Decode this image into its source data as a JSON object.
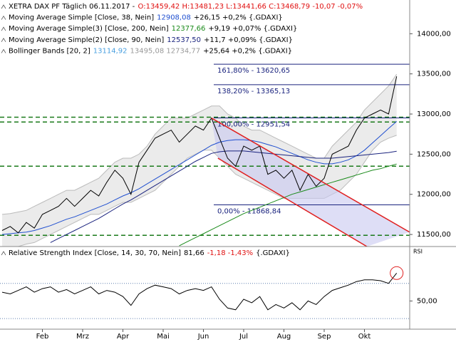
{
  "chart_data": [
    {
      "type": "line",
      "legend": [
        {
          "parts": [
            {
              "text": "XETRA DAX PF Täglich  06.11.2017 -",
              "color": "#000000"
            },
            {
              "text": "O:13459,42 H:13481,23 L:13441,66 C:13468,79 -10,07 -0,07%",
              "color": "#e01010"
            }
          ]
        },
        {
          "parts": [
            {
              "text": "Moving Average Simple [Close, 38, Nein]",
              "color": "#000000"
            },
            {
              "text": "12908,08",
              "color": "#1f4fd0"
            },
            {
              "text": "+26,15 +0,2% {.GDAXI}",
              "color": "#000000"
            }
          ]
        },
        {
          "parts": [
            {
              "text": "Moving Average Simple(3) [Close, 200, Nein]",
              "color": "#000000"
            },
            {
              "text": "12377,66",
              "color": "#1a8a1a"
            },
            {
              "text": "+9,19 +0,07% {.GDAXI}",
              "color": "#000000"
            }
          ]
        },
        {
          "parts": [
            {
              "text": "Moving Average Simple(2) [Close, 90, Nein]",
              "color": "#000000"
            },
            {
              "text": "12537,50",
              "color": "#1a237e"
            },
            {
              "text": "+11,7 +0,09% {.GDAXI}",
              "color": "#000000"
            }
          ]
        },
        {
          "parts": [
            {
              "text": "Bollinger Bands [20, 2]",
              "color": "#000000"
            },
            {
              "text": "13114,92",
              "color": "#4aa0e0"
            },
            {
              "text": "13495,08 12734,77",
              "color": "#999999"
            },
            {
              "text": "+25,64 +0,2% {.GDAXI}",
              "color": "#000000"
            }
          ]
        }
      ],
      "ylim": [
        11350,
        14420
      ],
      "yticks": [
        {
          "value": 11500,
          "label": "11500,00"
        },
        {
          "value": 12000,
          "label": "12000,00"
        },
        {
          "value": 12500,
          "label": "12500,00"
        },
        {
          "value": 13000,
          "label": "13000,00"
        },
        {
          "value": 13500,
          "label": "13500,00"
        },
        {
          "value": 14000,
          "label": "14000,00"
        }
      ],
      "bands": {
        "color": "#bbbbbb",
        "upper": [
          11750,
          11760,
          11780,
          11800,
          11850,
          11900,
          11950,
          12000,
          12050,
          12050,
          12100,
          12150,
          12200,
          12300,
          12400,
          12450,
          12450,
          12500,
          12600,
          12750,
          12850,
          12950,
          12950,
          12950,
          13000,
          13050,
          13100,
          13100,
          13000,
          12950,
          12850,
          12800,
          12800,
          12750,
          12700,
          12650,
          12600,
          12550,
          12500,
          12450,
          12450,
          12600,
          12700,
          12800,
          12900,
          13050,
          13150,
          13250,
          13350,
          13495.08
        ],
        "lower": [
          11300,
          11320,
          11350,
          11380,
          11400,
          11450,
          11500,
          11550,
          11600,
          11650,
          11700,
          11750,
          11750,
          11800,
          11850,
          11900,
          11900,
          11950,
          12000,
          12050,
          12150,
          12250,
          12350,
          12450,
          12500,
          12550,
          12550,
          12450,
          12350,
          12250,
          12200,
          12150,
          12100,
          12050,
          12000,
          11950,
          11950,
          11950,
          11950,
          11950,
          11950,
          12000,
          12050,
          12150,
          12250,
          12400,
          12550,
          12650,
          12700,
          12734.77
        ]
      },
      "series": [
        {
          "color": "#1f4fd0",
          "values": [
            11500,
            11510,
            11520,
            11530,
            11550,
            11580,
            11610,
            11650,
            11690,
            11720,
            11760,
            11800,
            11840,
            11880,
            11930,
            11980,
            12020,
            12070,
            12130,
            12190,
            12250,
            12310,
            12370,
            12430,
            12490,
            12550,
            12610,
            12650,
            12670,
            12680,
            12680,
            12670,
            12650,
            12620,
            12590,
            12550,
            12510,
            12470,
            12430,
            12400,
            12380,
            12380,
            12400,
            12430,
            12480,
            12550,
            12640,
            12730,
            12820,
            12908.08
          ]
        },
        {
          "color": "#1a237e",
          "values": [
            null,
            null,
            null,
            null,
            null,
            null,
            11400,
            11450,
            11500,
            11550,
            11600,
            11650,
            11700,
            11760,
            11820,
            11880,
            11930,
            11990,
            12050,
            12110,
            12170,
            12230,
            12290,
            12350,
            12410,
            12460,
            12510,
            12530,
            12540,
            12540,
            12540,
            12530,
            12520,
            12510,
            12500,
            12490,
            12480,
            12470,
            12460,
            12450,
            12450,
            12450,
            12460,
            12470,
            12480,
            12490,
            12500,
            12510,
            12520,
            12537.5
          ]
        },
        {
          "color": "#1a8a1a",
          "values": [
            null,
            null,
            null,
            null,
            null,
            null,
            null,
            null,
            null,
            null,
            null,
            null,
            null,
            null,
            null,
            null,
            null,
            null,
            null,
            null,
            null,
            null,
            11360,
            11410,
            11460,
            11510,
            11560,
            11610,
            11660,
            11710,
            11760,
            11800,
            11840,
            11880,
            11920,
            11960,
            12000,
            12030,
            12060,
            12090,
            12120,
            12150,
            12180,
            12210,
            12240,
            12270,
            12300,
            12320,
            12350,
            12377.66
          ]
        },
        {
          "color": "#000000",
          "values": [
            11550,
            11600,
            11520,
            11650,
            11580,
            11750,
            11800,
            11850,
            11950,
            11850,
            11950,
            12050,
            11980,
            12150,
            12300,
            12200,
            12000,
            12400,
            12550,
            12700,
            12750,
            12800,
            12650,
            12750,
            12850,
            12800,
            12950,
            12700,
            12450,
            12350,
            12600,
            12550,
            12600,
            12250,
            12300,
            12200,
            12300,
            12050,
            12250,
            12100,
            12200,
            12500,
            12550,
            12600,
            12800,
            12950,
            13000,
            13050,
            13000,
            13468.79
          ]
        }
      ],
      "fib_levels": [
        {
          "value": 13620.65,
          "label": "161,80% - 13620,65"
        },
        {
          "value": 13365.13,
          "label": "138,20% - 13365,13"
        },
        {
          "value": 12951.54,
          "label": "100,00% - 12951,54"
        },
        {
          "value": 11868.84,
          "label": "0,00% - 11868,84"
        }
      ],
      "support_lines": [
        12960,
        12900,
        12350,
        11490
      ],
      "trend_channel": {
        "color": "#e02020",
        "upper": [
          [
            26,
            12950
          ],
          [
            50.6,
            11530
          ]
        ],
        "lower": [
          [
            26.8,
            12450
          ],
          [
            45.3,
            11350
          ]
        ]
      }
    },
    {
      "type": "line",
      "legend": [
        {
          "parts": [
            {
              "text": "Relative Strength Index [Close, 14, 30, 70, Nein]",
              "color": "#000000"
            },
            {
              "text": "81,66",
              "color": "#000000"
            },
            {
              "text": "-1,18 -1,43%",
              "color": "#e01010"
            },
            {
              "text": "{.GDAXI}",
              "color": "#000000"
            }
          ]
        }
      ],
      "axis_title": "RSI",
      "categories": [
        null,
        null,
        null,
        null,
        null,
        "Feb",
        null,
        null,
        null,
        null,
        "Mrz",
        null,
        null,
        null,
        null,
        "Apr",
        null,
        null,
        null,
        null,
        "Mai",
        null,
        null,
        null,
        null,
        "Jun",
        null,
        null,
        null,
        null,
        "Jul",
        null,
        null,
        null,
        null,
        "Aug",
        null,
        null,
        null,
        null,
        "Sep",
        null,
        null,
        null,
        null,
        "Okt",
        null,
        null,
        null,
        null
      ],
      "ylim": [
        18,
        111
      ],
      "yticks": [
        {
          "value": 50,
          "label": "50,00"
        }
      ],
      "levels": [
        30,
        70
      ],
      "series": [
        {
          "color": "#000000",
          "values": [
            60,
            58,
            62,
            66,
            60,
            64,
            66,
            60,
            63,
            58,
            62,
            66,
            58,
            62,
            60,
            55,
            45,
            58,
            64,
            68,
            66,
            64,
            58,
            62,
            64,
            62,
            66,
            52,
            42,
            40,
            52,
            48,
            55,
            40,
            46,
            42,
            48,
            40,
            50,
            46,
            55,
            62,
            65,
            68,
            72,
            74,
            74,
            73,
            70,
            81.66
          ]
        }
      ]
    }
  ]
}
